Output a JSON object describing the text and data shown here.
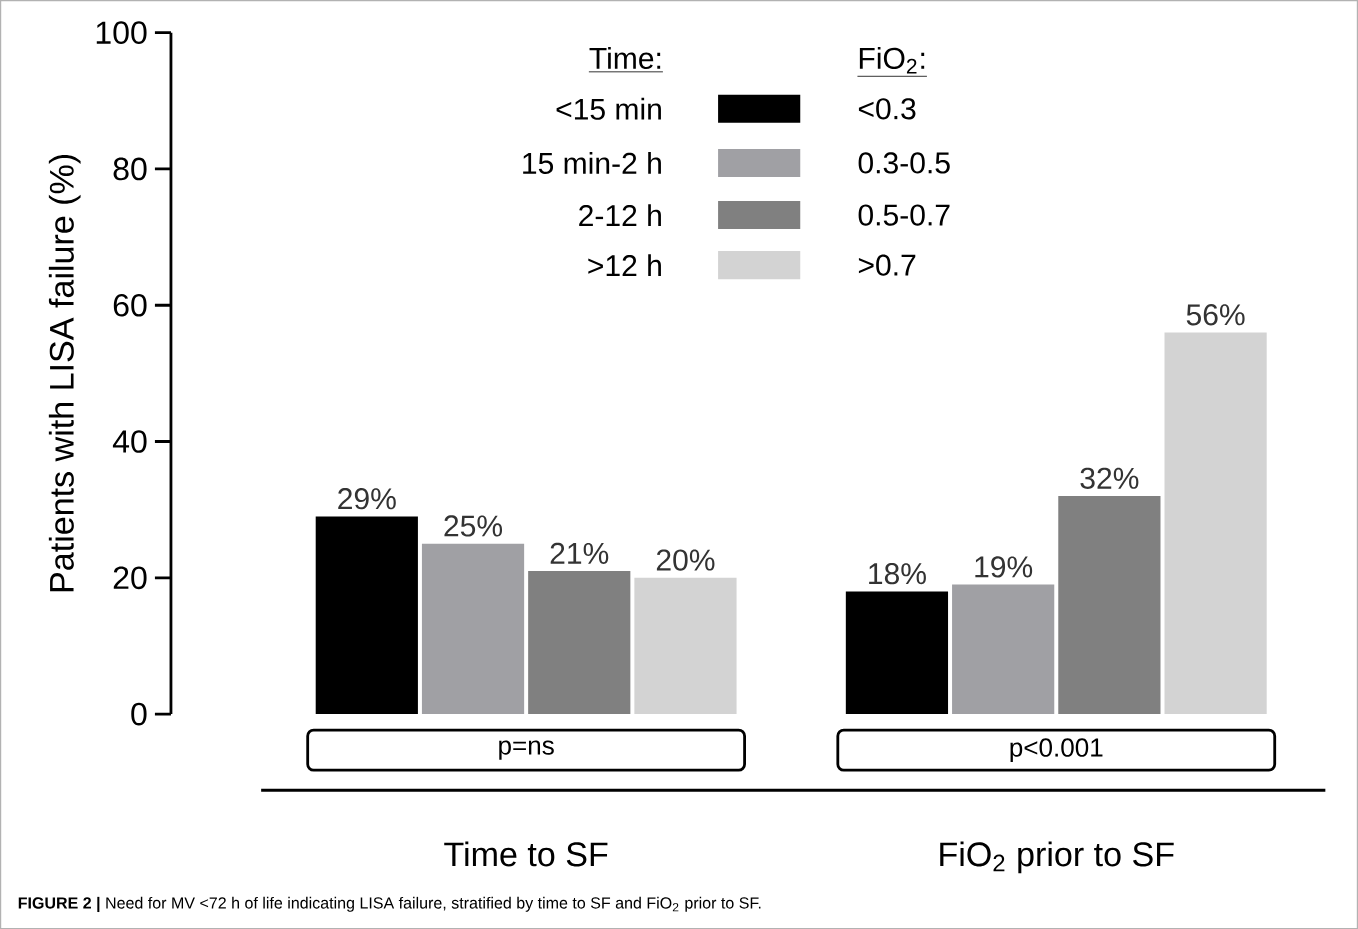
{
  "chart_data": {
    "type": "bar",
    "categories": [
      "Time to SF",
      "FiO$_{2}$ prior to SF"
    ],
    "ylabel": "Patients with LISA failure (%)",
    "legend_title": "Time:",
    "legend": "top",
    "ylim": [
      0,
      100
    ],
    "yticks": [
      0,
      20,
      40,
      60,
      80,
      100
    ],
    "series": [
      {
        "name": "<15 min",
        "color": "#000000",
        "values": [
          29,
          18
        ],
        "value_labels": [
          "29%",
          "18%"
        ]
      },
      {
        "name": "15 min-2 h",
        "color": "#a0a0a4",
        "values": [
          25,
          19
        ],
        "value_labels": [
          "25%",
          "19%"
        ]
      },
      {
        "name": "2-12 h",
        "color": "#808080",
        "values": [
          21,
          32
        ],
        "value_labels": [
          "21%",
          "32%"
        ]
      },
      {
        "name": ">12 h",
        "color": "#d3d3d3",
        "values": [
          20,
          56
        ],
        "value_labels": [
          "20%",
          "56%"
        ]
      }
    ],
    "annotations": [
      "p=ns",
      "p<0.001",
      "FiO$_{2}$:",
      "<0.3",
      "0.3-0.5",
      "0.5-0.7",
      ">0.7",
      "**FIGURE 2 |** Need for MV <72 h of life indicating LISA failure, stratified by time to SF and FiO$_{2}$ prior to SF."
    ]
  }
}
